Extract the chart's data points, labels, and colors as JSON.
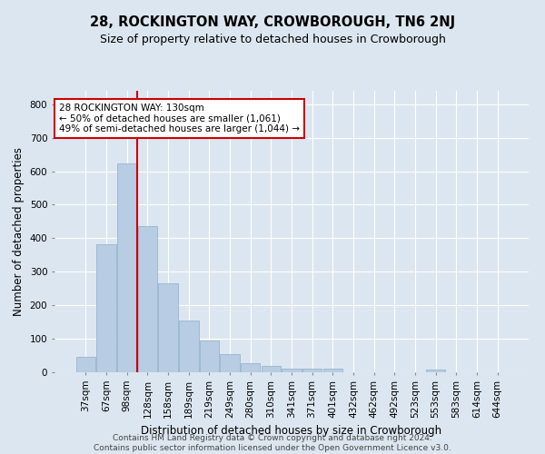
{
  "title": "28, ROCKINGTON WAY, CROWBOROUGH, TN6 2NJ",
  "subtitle": "Size of property relative to detached houses in Crowborough",
  "xlabel": "Distribution of detached houses by size in Crowborough",
  "ylabel": "Number of detached properties",
  "footer_line1": "Contains HM Land Registry data © Crown copyright and database right 2024.",
  "footer_line2": "Contains public sector information licensed under the Open Government Licence v3.0.",
  "annotation_line1": "28 ROCKINGTON WAY: 130sqm",
  "annotation_line2": "← 50% of detached houses are smaller (1,061)",
  "annotation_line3": "49% of semi-detached houses are larger (1,044) →",
  "red_line_index": 3,
  "categories": [
    "37sqm",
    "67sqm",
    "98sqm",
    "128sqm",
    "158sqm",
    "189sqm",
    "219sqm",
    "249sqm",
    "280sqm",
    "310sqm",
    "341sqm",
    "371sqm",
    "401sqm",
    "432sqm",
    "462sqm",
    "492sqm",
    "523sqm",
    "553sqm",
    "583sqm",
    "614sqm",
    "644sqm"
  ],
  "values": [
    47,
    383,
    623,
    437,
    265,
    155,
    95,
    55,
    28,
    18,
    10,
    12,
    10,
    0,
    0,
    0,
    0,
    7,
    0,
    0,
    0
  ],
  "bar_color": "#b8cce4",
  "bar_edge_color": "#8aafc8",
  "red_line_color": "#cc0000",
  "background_color": "#dce6f0",
  "plot_bg_color": "#dce6f0",
  "grid_color": "#ffffff",
  "title_fontsize": 10.5,
  "subtitle_fontsize": 9,
  "axis_label_fontsize": 8.5,
  "tick_fontsize": 7.5,
  "annotation_fontsize": 7.5,
  "footer_fontsize": 6.5,
  "ylim": [
    0,
    840
  ],
  "yticks": [
    0,
    100,
    200,
    300,
    400,
    500,
    600,
    700,
    800
  ]
}
